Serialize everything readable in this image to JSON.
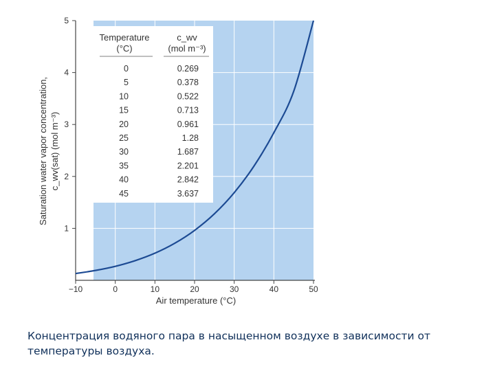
{
  "chart_data": {
    "type": "line",
    "title": "",
    "xlabel": "Air temperature (°C)",
    "ylabel_line1": "Saturation water vapor concentration,",
    "ylabel_line2": "c_wv(sat) (mol m⁻³)",
    "xlim": [
      -10,
      50
    ],
    "ylim": [
      0,
      5
    ],
    "x_ticks": [
      -10,
      0,
      10,
      20,
      30,
      40,
      50
    ],
    "x_tick_labels": [
      "−10",
      "0",
      "10",
      "20",
      "30",
      "40",
      "50"
    ],
    "y_ticks": [
      1,
      2,
      3,
      4,
      5
    ],
    "y_tick_labels": [
      "1",
      "2",
      "3",
      "4",
      "5"
    ],
    "grid": true,
    "series": [
      {
        "x": [
          -10,
          -5,
          0,
          5,
          10,
          15,
          20,
          25,
          30,
          35,
          40,
          45,
          50
        ],
        "values": [
          0.13,
          0.19,
          0.269,
          0.378,
          0.522,
          0.713,
          0.961,
          1.28,
          1.687,
          2.201,
          2.842,
          3.637,
          5.0
        ]
      }
    ],
    "colors": {
      "plot_bg": "#b5d3f0",
      "line": "#1c4a93",
      "grid": "#ffffff",
      "table_bg": "#ffffff"
    },
    "table": {
      "header_col1_line1": "Temperature",
      "header_col1_line2": "(°C)",
      "header_col2_line1": "c_wv",
      "header_col2_line2": "(mol m⁻³)",
      "rows": [
        {
          "t": "0",
          "c": "0.269"
        },
        {
          "t": "5",
          "c": "0.378"
        },
        {
          "t": "10",
          "c": "0.522"
        },
        {
          "t": "15",
          "c": "0.713"
        },
        {
          "t": "20",
          "c": "0.961"
        },
        {
          "t": "25",
          "c": "1.28"
        },
        {
          "t": "30",
          "c": "1.687"
        },
        {
          "t": "35",
          "c": "2.201"
        },
        {
          "t": "40",
          "c": "2.842"
        },
        {
          "t": "45",
          "c": "3.637"
        }
      ]
    }
  },
  "caption": "Концентрация водяного пара в насыщенном воздухе в зависимости от температуры воздуха."
}
